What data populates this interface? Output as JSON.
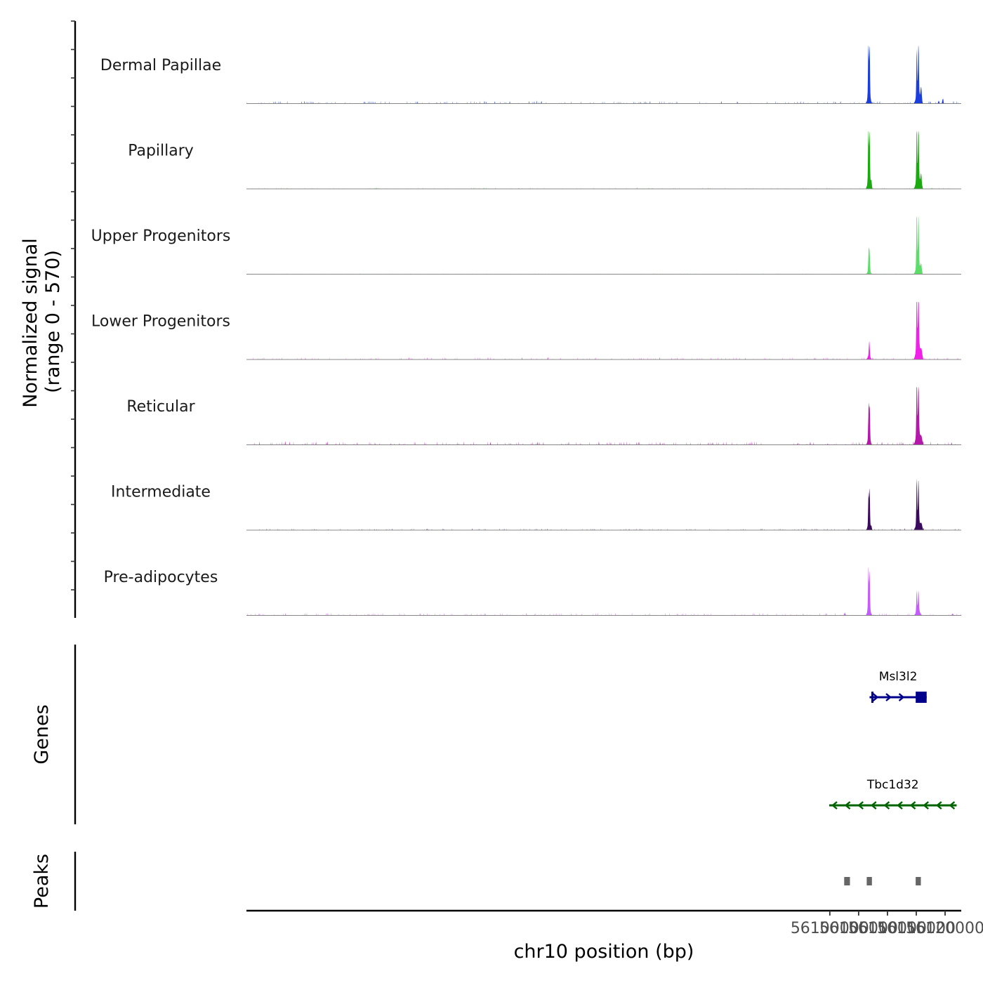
{
  "chart_data": {
    "type": "area",
    "title": "",
    "ylabel_line1": "Normalized signal",
    "ylabel_line2": "(range 0 - 570)",
    "signal_range": [
      0,
      570
    ],
    "xlabel": "chr10 position (bp)",
    "xlim": [
      55998800,
      56122800
    ],
    "xticks": [
      {
        "value": 56100000,
        "label": "56100000"
      },
      {
        "value": 56105000,
        "label": "56105000"
      },
      {
        "value": 56110000,
        "label": "56110000"
      },
      {
        "value": 56115000,
        "label": "56115000"
      },
      {
        "value": 56120000,
        "label": "56120000"
      }
    ],
    "tracks": [
      {
        "name": "Dermal Papillae",
        "color": "#1a3ddb",
        "peaks": [
          {
            "x": 56106700,
            "h": 0.97,
            "w": 90
          },
          {
            "x": 56106900,
            "h": 0.82,
            "w": 90
          },
          {
            "x": 56106800,
            "h": 0.22,
            "w": 300
          },
          {
            "x": 56115080,
            "h": 0.76,
            "w": 90
          },
          {
            "x": 56115380,
            "h": 0.9,
            "w": 100
          },
          {
            "x": 56115300,
            "h": 0.25,
            "w": 400
          },
          {
            "x": 56115850,
            "h": 0.25,
            "w": 150
          },
          {
            "x": 56119600,
            "h": 0.08,
            "w": 120
          },
          {
            "x": 56118900,
            "h": 0.05,
            "w": 120
          }
        ],
        "noise": 0.02
      },
      {
        "name": "Papillary",
        "color": "#1aaa10",
        "peaks": [
          {
            "x": 56106700,
            "h": 0.95,
            "w": 90
          },
          {
            "x": 56106900,
            "h": 0.82,
            "w": 90
          },
          {
            "x": 56106800,
            "h": 0.22,
            "w": 300
          },
          {
            "x": 56107200,
            "h": 0.12,
            "w": 120
          },
          {
            "x": 56115080,
            "h": 0.93,
            "w": 90
          },
          {
            "x": 56115380,
            "h": 0.96,
            "w": 100
          },
          {
            "x": 56115300,
            "h": 0.28,
            "w": 400
          },
          {
            "x": 56115850,
            "h": 0.22,
            "w": 150
          }
        ],
        "noise": 0.008
      },
      {
        "name": "Upper Progenitors",
        "color": "#5ddc6a",
        "peaks": [
          {
            "x": 56106750,
            "h": 0.34,
            "w": 100
          },
          {
            "x": 56106900,
            "h": 0.3,
            "w": 100
          },
          {
            "x": 56106800,
            "h": 0.08,
            "w": 300
          },
          {
            "x": 56115080,
            "h": 0.97,
            "w": 90
          },
          {
            "x": 56115380,
            "h": 0.84,
            "w": 100
          },
          {
            "x": 56115300,
            "h": 0.25,
            "w": 400
          },
          {
            "x": 56115850,
            "h": 0.15,
            "w": 150
          }
        ],
        "noise": 0.006
      },
      {
        "name": "Lower Progenitors",
        "color": "#f020e8",
        "peaks": [
          {
            "x": 56106850,
            "h": 0.25,
            "w": 110
          },
          {
            "x": 56106800,
            "h": 0.07,
            "w": 300
          },
          {
            "x": 56115080,
            "h": 1.0,
            "w": 90
          },
          {
            "x": 56115380,
            "h": 0.91,
            "w": 100
          },
          {
            "x": 56115300,
            "h": 0.38,
            "w": 400
          },
          {
            "x": 56115900,
            "h": 0.15,
            "w": 200
          }
        ],
        "noise": 0.015
      },
      {
        "name": "Reticular",
        "color": "#b318a8",
        "peaks": [
          {
            "x": 56106750,
            "h": 0.58,
            "w": 100
          },
          {
            "x": 56106920,
            "h": 0.52,
            "w": 90
          },
          {
            "x": 56106800,
            "h": 0.14,
            "w": 300
          },
          {
            "x": 56115080,
            "h": 0.99,
            "w": 90
          },
          {
            "x": 56115380,
            "h": 0.85,
            "w": 100
          },
          {
            "x": 56115300,
            "h": 0.35,
            "w": 400
          },
          {
            "x": 56115900,
            "h": 0.12,
            "w": 200
          }
        ],
        "noise": 0.025
      },
      {
        "name": "Intermediate",
        "color": "#3a0a5c",
        "peaks": [
          {
            "x": 56106720,
            "h": 0.55,
            "w": 90
          },
          {
            "x": 56106900,
            "h": 0.62,
            "w": 90
          },
          {
            "x": 56106800,
            "h": 0.12,
            "w": 300
          },
          {
            "x": 56107200,
            "h": 0.06,
            "w": 120
          },
          {
            "x": 56115080,
            "h": 0.74,
            "w": 90
          },
          {
            "x": 56115380,
            "h": 0.67,
            "w": 100
          },
          {
            "x": 56115300,
            "h": 0.22,
            "w": 400
          },
          {
            "x": 56115900,
            "h": 0.1,
            "w": 200
          }
        ],
        "noise": 0.012
      },
      {
        "name": "Pre-adipocytes",
        "color": "#c45aff",
        "peaks": [
          {
            "x": 56106700,
            "h": 0.7,
            "w": 90
          },
          {
            "x": 56106900,
            "h": 0.62,
            "w": 90
          },
          {
            "x": 56106800,
            "h": 0.18,
            "w": 300
          },
          {
            "x": 56115080,
            "h": 0.35,
            "w": 90
          },
          {
            "x": 56115380,
            "h": 0.32,
            "w": 100
          },
          {
            "x": 56115300,
            "h": 0.12,
            "w": 400
          },
          {
            "x": 56102600,
            "h": 0.04,
            "w": 150
          },
          {
            "x": 56121300,
            "h": 0.03,
            "w": 150
          }
        ],
        "noise": 0.02
      }
    ],
    "genes_panel_label": "Genes",
    "genes": [
      {
        "name": "Msl3l2",
        "strand": "+",
        "start": 56106900,
        "end": 56116800,
        "thick_start": 56114900,
        "color": "#00008b"
      },
      {
        "name": "Tbc1d32",
        "strand": "-",
        "start": 56099900,
        "end": 56122000,
        "thick_start": null,
        "color": "#006400"
      }
    ],
    "peaks_panel_label": "Peaks",
    "peak_regions": [
      {
        "start": 56102500,
        "end": 56103500
      },
      {
        "start": 56106400,
        "end": 56107300
      },
      {
        "start": 56114900,
        "end": 56115800
      }
    ]
  }
}
